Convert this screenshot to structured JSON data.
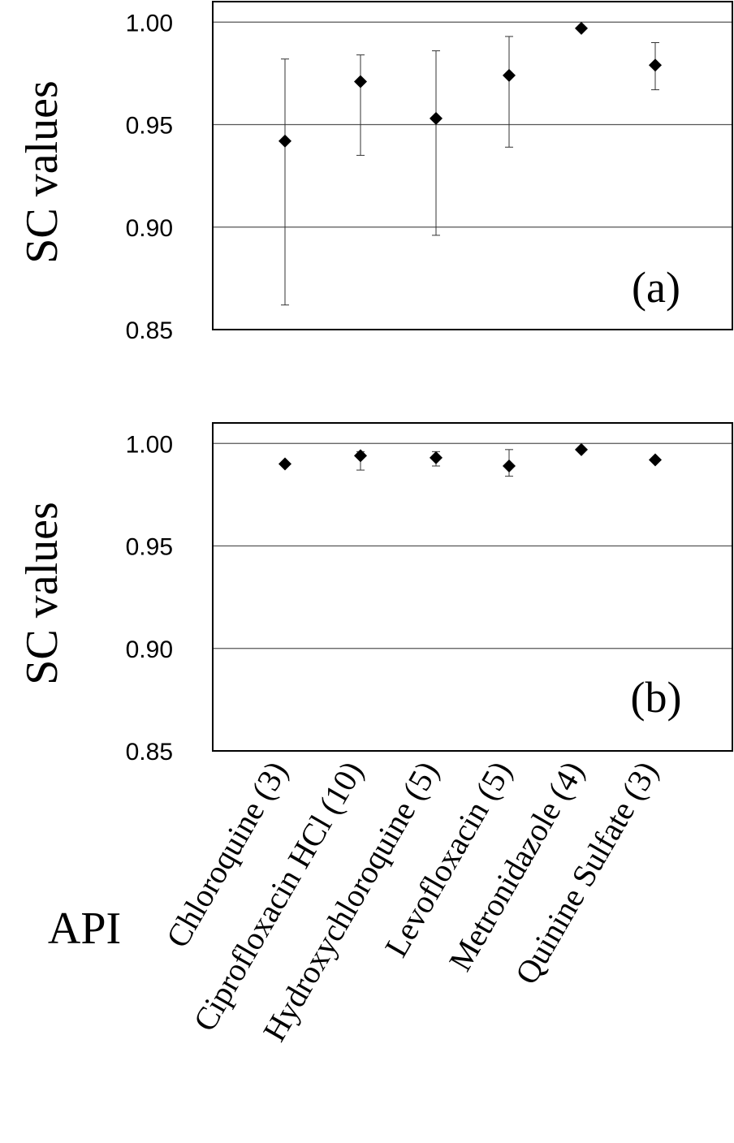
{
  "chart_data": [
    {
      "type": "scatter",
      "panel_label": "(a)",
      "ylabel": "SC values",
      "ylim": [
        0.85,
        1.01
      ],
      "yticks": [
        "0.85",
        "0.90",
        "0.95",
        "1.00"
      ],
      "grid": true,
      "categories": [
        "Chloroquine (3)",
        "Ciprofloxacin HCl (10)",
        "Hydroxychloroquine (5)",
        "Levofloxacin (5)",
        "Metronidazole (4)",
        "Quinine Sulfate (3)"
      ],
      "values": [
        0.942,
        0.971,
        0.953,
        0.974,
        0.997,
        0.979
      ],
      "error_low": [
        0.862,
        0.935,
        0.896,
        0.939,
        0.997,
        0.967
      ],
      "error_high": [
        0.982,
        0.984,
        0.986,
        0.993,
        0.997,
        0.99
      ]
    },
    {
      "type": "scatter",
      "panel_label": "(b)",
      "ylabel": "SC values",
      "ylim": [
        0.85,
        1.01
      ],
      "yticks": [
        "0.85",
        "0.90",
        "0.95",
        "1.00"
      ],
      "grid": true,
      "categories": [
        "Chloroquine (3)",
        "Ciprofloxacin HCl (10)",
        "Hydroxychloroquine (5)",
        "Levofloxacin (5)",
        "Metronidazole (4)",
        "Quinine Sulfate (3)"
      ],
      "values": [
        0.99,
        0.994,
        0.993,
        0.989,
        0.997,
        0.992
      ],
      "error_low": [
        0.99,
        0.987,
        0.989,
        0.984,
        0.997,
        0.992
      ],
      "error_high": [
        0.99,
        0.996,
        0.996,
        0.997,
        0.997,
        0.992
      ]
    }
  ],
  "xlabel": "API"
}
